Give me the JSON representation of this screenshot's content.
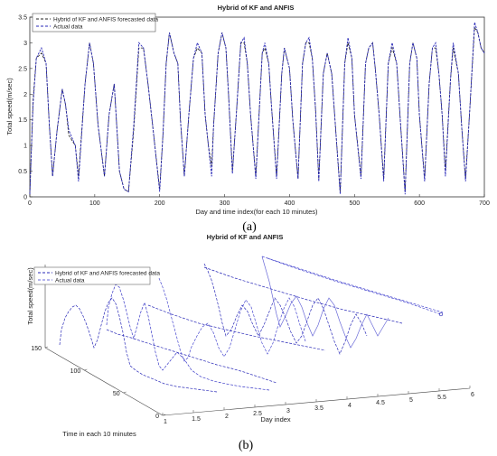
{
  "chart_data": [
    {
      "type": "line",
      "panel_label": "(a)",
      "title": "Hybrid of KF and ANFIS",
      "xlabel": "Day and time index(for each 10 minutes)",
      "ylabel": "Total speed(m/sec)",
      "xlim": [
        0,
        700
      ],
      "ylim": [
        0,
        3.5
      ],
      "xticks": [
        "0",
        "100",
        "200",
        "300",
        "400",
        "500",
        "600",
        "700"
      ],
      "yticks": [
        "0",
        "0.5",
        "1",
        "1.5",
        "2",
        "2.5",
        "3",
        "3.5"
      ],
      "legend_position": "top-left",
      "grid": false,
      "series": [
        {
          "name": "Hybrid of KF and ANFIS forecasted data",
          "style": "dashed",
          "color": "#222222",
          "points": [
            [
              0,
              0.05
            ],
            [
              5,
              1.9
            ],
            [
              10,
              2.7
            ],
            [
              18,
              2.8
            ],
            [
              25,
              2.6
            ],
            [
              30,
              1.4
            ],
            [
              35,
              0.4
            ],
            [
              42,
              1.3
            ],
            [
              50,
              2.1
            ],
            [
              55,
              1.8
            ],
            [
              60,
              1.2
            ],
            [
              70,
              1.0
            ],
            [
              75,
              0.4
            ],
            [
              85,
              2.2
            ],
            [
              92,
              3.0
            ],
            [
              98,
              2.6
            ],
            [
              105,
              1.4
            ],
            [
              115,
              0.4
            ],
            [
              122,
              1.6
            ],
            [
              130,
              2.2
            ],
            [
              138,
              0.5
            ],
            [
              145,
              0.15
            ],
            [
              152,
              0.1
            ],
            [
              160,
              1.3
            ],
            [
              168,
              2.9
            ],
            [
              175,
              2.9
            ],
            [
              182,
              2.2
            ],
            [
              190,
              1.3
            ],
            [
              200,
              0.15
            ],
            [
              205,
              1.2
            ],
            [
              210,
              2.6
            ],
            [
              215,
              3.2
            ],
            [
              222,
              2.8
            ],
            [
              228,
              2.6
            ],
            [
              232,
              1.5
            ],
            [
              238,
              0.4
            ],
            [
              245,
              1.6
            ],
            [
              252,
              2.7
            ],
            [
              258,
              2.9
            ],
            [
              265,
              2.8
            ],
            [
              270,
              1.6
            ],
            [
              275,
              1.0
            ],
            [
              280,
              0.6
            ],
            [
              283,
              1.4
            ],
            [
              290,
              2.8
            ],
            [
              296,
              3.2
            ],
            [
              302,
              2.9
            ],
            [
              306,
              2.0
            ],
            [
              312,
              0.5
            ],
            [
              318,
              1.6
            ],
            [
              325,
              3.0
            ],
            [
              330,
              3.0
            ],
            [
              335,
              2.6
            ],
            [
              340,
              1.6
            ],
            [
              348,
              0.4
            ],
            [
              358,
              2.8
            ],
            [
              362,
              2.9
            ],
            [
              368,
              2.6
            ],
            [
              372,
              1.8
            ],
            [
              380,
              0.4
            ],
            [
              388,
              2.4
            ],
            [
              392,
              2.9
            ],
            [
              400,
              2.5
            ],
            [
              405,
              1.5
            ],
            [
              413,
              0.35
            ],
            [
              420,
              2.6
            ],
            [
              425,
              3.0
            ],
            [
              430,
              3.0
            ],
            [
              435,
              2.7
            ],
            [
              440,
              1.7
            ],
            [
              445,
              0.35
            ],
            [
              452,
              2.4
            ],
            [
              458,
              2.8
            ],
            [
              465,
              2.4
            ],
            [
              470,
              1.5
            ],
            [
              478,
              0.1
            ],
            [
              485,
              2.6
            ],
            [
              490,
              3.0
            ],
            [
              496,
              2.7
            ],
            [
              500,
              1.6
            ],
            [
              510,
              0.4
            ],
            [
              517,
              2.6
            ],
            [
              522,
              2.9
            ],
            [
              528,
              3.0
            ],
            [
              532,
              2.5
            ],
            [
              538,
              1.6
            ],
            [
              545,
              0.35
            ],
            [
              552,
              2.6
            ],
            [
              558,
              2.9
            ],
            [
              565,
              2.6
            ],
            [
              570,
              1.6
            ],
            [
              578,
              0.1
            ],
            [
              585,
              2.6
            ],
            [
              590,
              3.0
            ],
            [
              596,
              2.7
            ],
            [
              600,
              1.6
            ],
            [
              608,
              0.35
            ],
            [
              615,
              2.2
            ],
            [
              620,
              2.9
            ],
            [
              625,
              2.9
            ],
            [
              630,
              2.4
            ],
            [
              635,
              1.6
            ],
            [
              640,
              0.5
            ],
            [
              648,
              2.3
            ],
            [
              652,
              2.9
            ],
            [
              660,
              2.4
            ],
            [
              665,
              1.4
            ],
            [
              671,
              0.35
            ],
            [
              678,
              1.8
            ],
            [
              685,
              3.3
            ],
            [
              690,
              3.2
            ],
            [
              695,
              2.9
            ],
            [
              700,
              2.8
            ]
          ]
        },
        {
          "name": "Actual data",
          "style": "dashed",
          "color": "#2a2ab8",
          "points": [
            [
              0,
              0.05
            ],
            [
              5,
              1.8
            ],
            [
              10,
              2.7
            ],
            [
              18,
              2.9
            ],
            [
              25,
              2.6
            ],
            [
              30,
              1.4
            ],
            [
              35,
              0.4
            ],
            [
              42,
              1.3
            ],
            [
              50,
              2.1
            ],
            [
              55,
              1.8
            ],
            [
              60,
              1.3
            ],
            [
              70,
              1.0
            ],
            [
              75,
              0.3
            ],
            [
              85,
              2.2
            ],
            [
              92,
              3.0
            ],
            [
              98,
              2.6
            ],
            [
              105,
              1.4
            ],
            [
              115,
              0.4
            ],
            [
              122,
              1.6
            ],
            [
              130,
              2.2
            ],
            [
              138,
              0.5
            ],
            [
              145,
              0.15
            ],
            [
              152,
              0.1
            ],
            [
              160,
              1.4
            ],
            [
              168,
              3.0
            ],
            [
              175,
              2.9
            ],
            [
              182,
              2.2
            ],
            [
              190,
              1.3
            ],
            [
              200,
              0.1
            ],
            [
              205,
              1.2
            ],
            [
              210,
              2.6
            ],
            [
              215,
              3.2
            ],
            [
              222,
              2.8
            ],
            [
              228,
              2.6
            ],
            [
              232,
              1.5
            ],
            [
              238,
              0.4
            ],
            [
              245,
              1.6
            ],
            [
              252,
              2.7
            ],
            [
              258,
              3.0
            ],
            [
              265,
              2.8
            ],
            [
              270,
              1.6
            ],
            [
              275,
              1.0
            ],
            [
              280,
              0.4
            ],
            [
              283,
              1.4
            ],
            [
              290,
              2.8
            ],
            [
              296,
              3.2
            ],
            [
              302,
              2.9
            ],
            [
              306,
              2.0
            ],
            [
              312,
              0.45
            ],
            [
              318,
              1.6
            ],
            [
              325,
              3.0
            ],
            [
              330,
              3.1
            ],
            [
              335,
              2.6
            ],
            [
              340,
              1.6
            ],
            [
              348,
              0.35
            ],
            [
              358,
              2.8
            ],
            [
              362,
              3.0
            ],
            [
              368,
              2.6
            ],
            [
              372,
              1.8
            ],
            [
              380,
              0.35
            ],
            [
              388,
              2.4
            ],
            [
              392,
              2.9
            ],
            [
              400,
              2.5
            ],
            [
              405,
              1.5
            ],
            [
              413,
              0.35
            ],
            [
              420,
              2.6
            ],
            [
              425,
              3.0
            ],
            [
              430,
              3.1
            ],
            [
              435,
              2.7
            ],
            [
              440,
              1.7
            ],
            [
              445,
              0.3
            ],
            [
              452,
              2.4
            ],
            [
              458,
              2.8
            ],
            [
              465,
              2.4
            ],
            [
              470,
              1.5
            ],
            [
              478,
              0.05
            ],
            [
              485,
              2.6
            ],
            [
              490,
              3.1
            ],
            [
              496,
              2.7
            ],
            [
              500,
              1.6
            ],
            [
              510,
              0.35
            ],
            [
              517,
              2.6
            ],
            [
              522,
              2.9
            ],
            [
              528,
              3.0
            ],
            [
              532,
              2.5
            ],
            [
              538,
              1.6
            ],
            [
              545,
              0.3
            ],
            [
              552,
              2.6
            ],
            [
              558,
              3.0
            ],
            [
              565,
              2.6
            ],
            [
              570,
              1.6
            ],
            [
              578,
              0.05
            ],
            [
              585,
              2.6
            ],
            [
              590,
              3.0
            ],
            [
              596,
              2.7
            ],
            [
              600,
              1.6
            ],
            [
              608,
              0.3
            ],
            [
              615,
              2.2
            ],
            [
              620,
              2.9
            ],
            [
              625,
              3.0
            ],
            [
              630,
              2.4
            ],
            [
              635,
              1.6
            ],
            [
              640,
              0.4
            ],
            [
              648,
              2.3
            ],
            [
              652,
              3.0
            ],
            [
              660,
              2.4
            ],
            [
              665,
              1.4
            ],
            [
              671,
              0.3
            ],
            [
              678,
              1.8
            ],
            [
              685,
              3.4
            ],
            [
              690,
              3.2
            ],
            [
              695,
              2.9
            ],
            [
              700,
              2.8
            ]
          ]
        }
      ]
    },
    {
      "type": "line",
      "panel_label": "(b)",
      "title": "Hybrid of KF and ANFIS",
      "xlabel": "Day index",
      "ylabel": "Time in each 10 minutes",
      "zlabel": "Total speed(m/sec)",
      "xlim": [
        1,
        6
      ],
      "ylim": [
        0,
        150
      ],
      "xticks": [
        "1",
        "1.5",
        "2",
        "2.5",
        "3",
        "3.5",
        "4",
        "4.5",
        "5",
        "5.5",
        "6"
      ],
      "yticks": [
        "0",
        "50",
        "100",
        "150"
      ],
      "legend_position": "top-left",
      "grid": false,
      "series": [
        {
          "name": "Hybrid of KF and ANFIS forecasted data",
          "style": "dashed",
          "color": "#2a2ab8"
        },
        {
          "name": "Actual data",
          "style": "dashed",
          "color": "#6a6ad8"
        }
      ]
    }
  ]
}
